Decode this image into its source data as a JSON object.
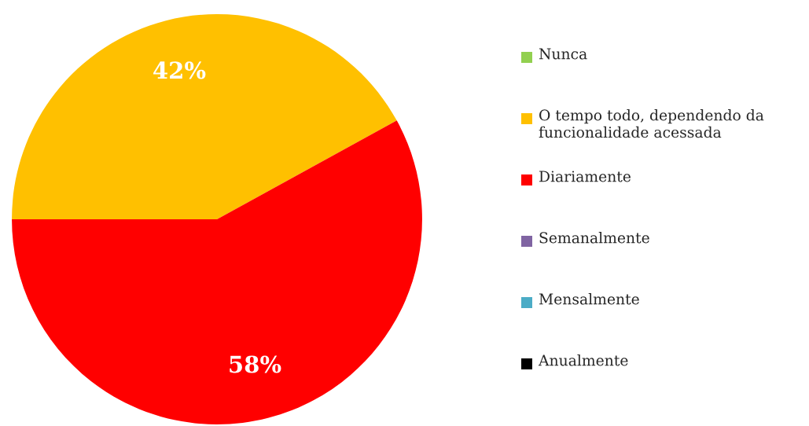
{
  "chart_data": {
    "type": "pie",
    "categories": [
      "Nunca",
      "O tempo todo, dependendo da funcionalidade acessada",
      "Diariamente",
      "Semanalmente",
      "Mensalmente",
      "Anualmente"
    ],
    "values": [
      0,
      42,
      58,
      0,
      0,
      0
    ],
    "colors": [
      "#92d050",
      "#ffc000",
      "#ff0000",
      "#8064a2",
      "#4bacc6",
      "#000000"
    ],
    "value_labels": [
      null,
      "42%",
      "58%",
      null,
      null,
      null
    ],
    "legend": "right"
  }
}
